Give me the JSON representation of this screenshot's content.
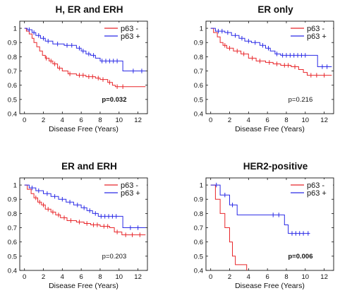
{
  "chart_data": [
    {
      "type": "line",
      "title": "H, ER and ERH",
      "xlabel": "Disease Free (Years)",
      "ylabel": "",
      "xlim": [
        -0.5,
        13
      ],
      "ylim": [
        0.4,
        1.05
      ],
      "x_ticks": [
        0,
        2,
        4,
        6,
        8,
        10,
        12
      ],
      "y_ticks": [
        0.4,
        0.5,
        0.6,
        0.7,
        0.8,
        0.9,
        1
      ],
      "legend": "top-right",
      "p_value": "p=0.032",
      "p_value_bold": true,
      "series": [
        {
          "name": "p63 -",
          "color": "#e8262a",
          "steps": [
            [
              0,
              1
            ],
            [
              0.2,
              0.98
            ],
            [
              0.5,
              0.96
            ],
            [
              0.8,
              0.93
            ],
            [
              1.0,
              0.9
            ],
            [
              1.3,
              0.87
            ],
            [
              1.6,
              0.84
            ],
            [
              1.9,
              0.81
            ],
            [
              2.2,
              0.79
            ],
            [
              2.6,
              0.77
            ],
            [
              3.0,
              0.75
            ],
            [
              3.5,
              0.72
            ],
            [
              4.0,
              0.7
            ],
            [
              4.6,
              0.68
            ],
            [
              5.5,
              0.67
            ],
            [
              6.5,
              0.66
            ],
            [
              7.5,
              0.65
            ],
            [
              8.0,
              0.64
            ],
            [
              8.8,
              0.62
            ],
            [
              9.3,
              0.6
            ],
            [
              9.6,
              0.59
            ],
            [
              12.8,
              0.59
            ]
          ],
          "censored": [
            [
              2.3,
              0.79
            ],
            [
              2.8,
              0.77
            ],
            [
              3.2,
              0.75
            ],
            [
              3.7,
              0.72
            ],
            [
              4.8,
              0.68
            ],
            [
              5.8,
              0.67
            ],
            [
              6.2,
              0.67
            ],
            [
              6.8,
              0.66
            ],
            [
              7.2,
              0.66
            ],
            [
              7.8,
              0.65
            ],
            [
              8.3,
              0.64
            ],
            [
              9.0,
              0.62
            ],
            [
              9.8,
              0.59
            ],
            [
              10.4,
              0.59
            ]
          ]
        },
        {
          "name": "p63 +",
          "color": "#2a2ae6",
          "steps": [
            [
              0,
              1
            ],
            [
              0.3,
              0.99
            ],
            [
              0.8,
              0.97
            ],
            [
              1.2,
              0.95
            ],
            [
              1.7,
              0.93
            ],
            [
              2.2,
              0.91
            ],
            [
              3.0,
              0.89
            ],
            [
              4.2,
              0.88
            ],
            [
              5.5,
              0.86
            ],
            [
              6.0,
              0.84
            ],
            [
              6.5,
              0.82
            ],
            [
              7.0,
              0.81
            ],
            [
              7.5,
              0.79
            ],
            [
              8.0,
              0.77
            ],
            [
              10.3,
              0.77
            ],
            [
              10.4,
              0.7
            ],
            [
              12.8,
              0.7
            ]
          ],
          "censored": [
            [
              0.5,
              0.99
            ],
            [
              1.0,
              0.97
            ],
            [
              1.5,
              0.95
            ],
            [
              2.0,
              0.93
            ],
            [
              2.5,
              0.91
            ],
            [
              3.5,
              0.89
            ],
            [
              4.5,
              0.88
            ],
            [
              5.0,
              0.88
            ],
            [
              5.8,
              0.86
            ],
            [
              6.2,
              0.84
            ],
            [
              6.8,
              0.82
            ],
            [
              7.3,
              0.81
            ],
            [
              8.2,
              0.77
            ],
            [
              8.6,
              0.77
            ],
            [
              9.0,
              0.77
            ],
            [
              9.4,
              0.77
            ],
            [
              9.8,
              0.77
            ],
            [
              11.5,
              0.7
            ],
            [
              12.4,
              0.7
            ]
          ]
        }
      ]
    },
    {
      "type": "line",
      "title": "ER only",
      "xlabel": "Disease Free (Years)",
      "ylabel": "",
      "xlim": [
        -0.5,
        13
      ],
      "ylim": [
        0.4,
        1.05
      ],
      "x_ticks": [
        0,
        2,
        4,
        6,
        8,
        10,
        12
      ],
      "y_ticks": [
        0.4,
        0.5,
        0.6,
        0.7,
        0.8,
        0.9,
        1
      ],
      "legend": "top-right",
      "p_value": "p=0.216",
      "p_value_bold": false,
      "series": [
        {
          "name": "p63 -",
          "color": "#e8262a",
          "steps": [
            [
              0,
              1
            ],
            [
              0.3,
              0.97
            ],
            [
              0.7,
              0.94
            ],
            [
              1.0,
              0.9
            ],
            [
              1.3,
              0.88
            ],
            [
              1.7,
              0.86
            ],
            [
              2.4,
              0.84
            ],
            [
              3.2,
              0.82
            ],
            [
              4.0,
              0.79
            ],
            [
              4.8,
              0.77
            ],
            [
              5.8,
              0.76
            ],
            [
              6.6,
              0.75
            ],
            [
              7.4,
              0.74
            ],
            [
              8.5,
              0.73
            ],
            [
              9.3,
              0.71
            ],
            [
              9.8,
              0.69
            ],
            [
              10.2,
              0.67
            ],
            [
              12.8,
              0.67
            ]
          ],
          "censored": [
            [
              1.5,
              0.88
            ],
            [
              2.0,
              0.86
            ],
            [
              2.8,
              0.84
            ],
            [
              3.5,
              0.82
            ],
            [
              4.4,
              0.79
            ],
            [
              5.2,
              0.77
            ],
            [
              6.2,
              0.76
            ],
            [
              7.0,
              0.75
            ],
            [
              7.8,
              0.74
            ],
            [
              8.2,
              0.74
            ],
            [
              8.9,
              0.73
            ],
            [
              10.6,
              0.67
            ],
            [
              11.2,
              0.67
            ],
            [
              12.0,
              0.67
            ]
          ]
        },
        {
          "name": "p63 +",
          "color": "#2a2ae6",
          "steps": [
            [
              0,
              1
            ],
            [
              0.5,
              0.98
            ],
            [
              1.5,
              0.97
            ],
            [
              2.2,
              0.95
            ],
            [
              3.0,
              0.93
            ],
            [
              3.6,
              0.91
            ],
            [
              4.3,
              0.9
            ],
            [
              5.2,
              0.88
            ],
            [
              5.8,
              0.86
            ],
            [
              6.3,
              0.84
            ],
            [
              6.8,
              0.82
            ],
            [
              7.4,
              0.81
            ],
            [
              11.2,
              0.81
            ],
            [
              11.3,
              0.73
            ],
            [
              12.8,
              0.73
            ]
          ],
          "censored": [
            [
              0.8,
              0.98
            ],
            [
              1.2,
              0.98
            ],
            [
              1.8,
              0.97
            ],
            [
              2.6,
              0.95
            ],
            [
              3.3,
              0.93
            ],
            [
              4.0,
              0.91
            ],
            [
              4.7,
              0.9
            ],
            [
              5.5,
              0.88
            ],
            [
              6.1,
              0.86
            ],
            [
              7.0,
              0.82
            ],
            [
              7.6,
              0.81
            ],
            [
              8.0,
              0.81
            ],
            [
              8.4,
              0.81
            ],
            [
              8.8,
              0.81
            ],
            [
              9.2,
              0.81
            ],
            [
              9.6,
              0.81
            ],
            [
              10.0,
              0.81
            ],
            [
              11.8,
              0.73
            ],
            [
              12.3,
              0.73
            ]
          ]
        }
      ]
    },
    {
      "type": "line",
      "title": "ER and ERH",
      "xlabel": "Disease Free (Years)",
      "ylabel": "",
      "xlim": [
        -0.5,
        13
      ],
      "ylim": [
        0.4,
        1.05
      ],
      "x_ticks": [
        0,
        2,
        4,
        6,
        8,
        10,
        12
      ],
      "y_ticks": [
        0.4,
        0.5,
        0.6,
        0.7,
        0.8,
        0.9,
        1
      ],
      "legend": "top-right",
      "p_value": "p=0.203",
      "p_value_bold": false,
      "series": [
        {
          "name": "p63 -",
          "color": "#e8262a",
          "steps": [
            [
              0,
              1
            ],
            [
              0.3,
              0.97
            ],
            [
              0.7,
              0.94
            ],
            [
              1.0,
              0.91
            ],
            [
              1.4,
              0.88
            ],
            [
              1.8,
              0.86
            ],
            [
              2.2,
              0.83
            ],
            [
              2.8,
              0.81
            ],
            [
              3.3,
              0.79
            ],
            [
              3.8,
              0.77
            ],
            [
              4.5,
              0.75
            ],
            [
              5.5,
              0.74
            ],
            [
              6.3,
              0.73
            ],
            [
              7.0,
              0.72
            ],
            [
              8.0,
              0.71
            ],
            [
              9.0,
              0.7
            ],
            [
              9.5,
              0.67
            ],
            [
              10.3,
              0.65
            ],
            [
              12.8,
              0.65
            ]
          ],
          "censored": [
            [
              1.2,
              0.91
            ],
            [
              1.6,
              0.88
            ],
            [
              2.0,
              0.86
            ],
            [
              2.5,
              0.83
            ],
            [
              3.0,
              0.81
            ],
            [
              3.6,
              0.79
            ],
            [
              4.2,
              0.77
            ],
            [
              4.9,
              0.75
            ],
            [
              5.8,
              0.74
            ],
            [
              6.6,
              0.73
            ],
            [
              7.3,
              0.72
            ],
            [
              7.7,
              0.72
            ],
            [
              8.4,
              0.71
            ],
            [
              8.8,
              0.71
            ],
            [
              9.8,
              0.67
            ],
            [
              10.7,
              0.65
            ],
            [
              11.4,
              0.65
            ],
            [
              12.2,
              0.65
            ]
          ]
        },
        {
          "name": "p63 +",
          "color": "#2a2ae6",
          "steps": [
            [
              0,
              1
            ],
            [
              0.5,
              0.98
            ],
            [
              1.2,
              0.96
            ],
            [
              2.0,
              0.94
            ],
            [
              2.8,
              0.92
            ],
            [
              3.6,
              0.9
            ],
            [
              4.4,
              0.88
            ],
            [
              5.2,
              0.86
            ],
            [
              6.0,
              0.84
            ],
            [
              6.6,
              0.82
            ],
            [
              7.2,
              0.8
            ],
            [
              7.8,
              0.78
            ],
            [
              10.3,
              0.78
            ],
            [
              10.4,
              0.7
            ],
            [
              12.8,
              0.7
            ]
          ],
          "censored": [
            [
              0.8,
              0.98
            ],
            [
              1.5,
              0.96
            ],
            [
              2.4,
              0.94
            ],
            [
              3.2,
              0.92
            ],
            [
              4.0,
              0.9
            ],
            [
              4.8,
              0.88
            ],
            [
              5.6,
              0.86
            ],
            [
              6.3,
              0.84
            ],
            [
              6.9,
              0.82
            ],
            [
              7.5,
              0.8
            ],
            [
              8.1,
              0.78
            ],
            [
              8.5,
              0.78
            ],
            [
              8.9,
              0.78
            ],
            [
              9.3,
              0.78
            ],
            [
              9.7,
              0.78
            ],
            [
              11.2,
              0.7
            ],
            [
              12.0,
              0.7
            ]
          ]
        }
      ]
    },
    {
      "type": "line",
      "title": "HER2-positive",
      "xlabel": "Disease Free (Years)",
      "ylabel": "",
      "xlim": [
        -0.5,
        13
      ],
      "ylim": [
        0.4,
        1.05
      ],
      "x_ticks": [
        0,
        2,
        4,
        6,
        8,
        10,
        12
      ],
      "y_ticks": [
        0.4,
        0.5,
        0.6,
        0.7,
        0.8,
        0.9,
        1
      ],
      "legend": "top-right",
      "p_value": "p=0.006",
      "p_value_bold": true,
      "series": [
        {
          "name": "p63 -",
          "color": "#e8262a",
          "steps": [
            [
              0,
              1
            ],
            [
              0.5,
              0.9
            ],
            [
              1.0,
              0.8
            ],
            [
              1.5,
              0.7
            ],
            [
              2.0,
              0.6
            ],
            [
              2.3,
              0.5
            ],
            [
              2.6,
              0.44
            ],
            [
              3.8,
              0.44
            ],
            [
              3.8,
              0.4
            ]
          ],
          "censored": []
        },
        {
          "name": "p63 +",
          "color": "#2a2ae6",
          "steps": [
            [
              0,
              1
            ],
            [
              0.9,
              1
            ],
            [
              1.0,
              0.93
            ],
            [
              1.9,
              0.93
            ],
            [
              2.0,
              0.86
            ],
            [
              2.7,
              0.86
            ],
            [
              2.8,
              0.79
            ],
            [
              7.7,
              0.79
            ],
            [
              7.8,
              0.72
            ],
            [
              8.1,
              0.72
            ],
            [
              8.2,
              0.66
            ],
            [
              10.5,
              0.66
            ]
          ],
          "censored": [
            [
              0.6,
              1
            ],
            [
              1.5,
              0.93
            ],
            [
              2.3,
              0.86
            ],
            [
              6.6,
              0.79
            ],
            [
              7.2,
              0.79
            ],
            [
              8.6,
              0.66
            ],
            [
              9.0,
              0.66
            ],
            [
              9.4,
              0.66
            ],
            [
              9.8,
              0.66
            ],
            [
              10.3,
              0.66
            ]
          ]
        }
      ]
    }
  ]
}
